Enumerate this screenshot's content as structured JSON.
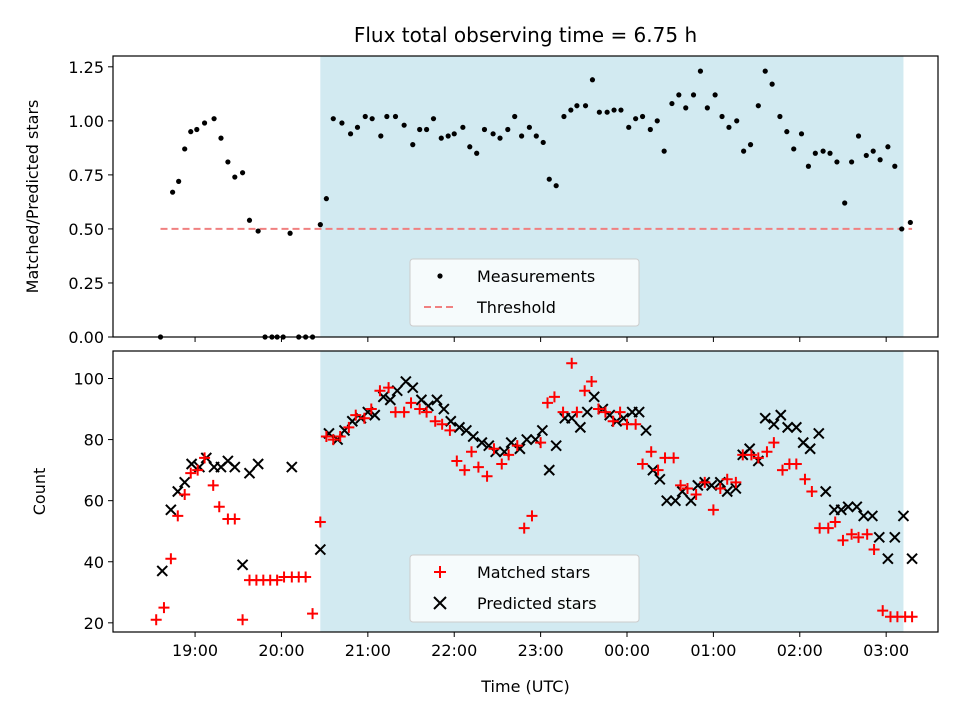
{
  "chart_data": [
    {
      "type": "scatter",
      "title": "Flux total observing time = 6.75 h",
      "ylabel": "Matched/Predicted stars",
      "xlabel": "",
      "x_unit": "hours_since_midnight",
      "xlim": [
        18.05,
        27.6
      ],
      "ylim": [
        0.0,
        1.3
      ],
      "yticks": [
        0.0,
        0.25,
        0.5,
        0.75,
        1.0,
        1.25
      ],
      "ytick_labels": [
        "0.00",
        "0.25",
        "0.50",
        "0.75",
        "1.00",
        "1.25"
      ],
      "xticks": [
        19,
        20,
        21,
        22,
        23,
        24,
        25,
        26,
        27
      ],
      "xtick_labels": [
        "19:00",
        "20:00",
        "21:00",
        "22:00",
        "23:00",
        "00:00",
        "01:00",
        "02:00",
        "03:00"
      ],
      "show_xtick_labels": false,
      "shaded_region": [
        20.45,
        27.2
      ],
      "legend_placement": "lower-center",
      "series": [
        {
          "name": "Measurements",
          "marker": "dot",
          "color": "#000000",
          "x": [
            18.6,
            18.74,
            18.81,
            18.88,
            18.95,
            19.02,
            19.11,
            19.22,
            19.3,
            19.38,
            19.46,
            19.55,
            19.63,
            19.73,
            19.81,
            19.89,
            19.95,
            20.02,
            20.1,
            20.2,
            20.28,
            20.36,
            20.45,
            20.52,
            20.6,
            20.7,
            20.8,
            20.88,
            20.97,
            21.05,
            21.15,
            21.22,
            21.32,
            21.42,
            21.52,
            21.6,
            21.68,
            21.76,
            21.85,
            21.93,
            22.0,
            22.1,
            22.18,
            22.26,
            22.35,
            22.45,
            22.53,
            22.62,
            22.7,
            22.78,
            22.87,
            22.95,
            23.03,
            23.1,
            23.18,
            23.27,
            23.35,
            23.42,
            23.52,
            23.6,
            23.68,
            23.77,
            23.85,
            23.93,
            24.02,
            24.1,
            24.18,
            24.27,
            24.35,
            24.43,
            24.52,
            24.6,
            24.68,
            24.77,
            24.85,
            24.93,
            25.02,
            25.1,
            25.18,
            25.27,
            25.35,
            25.43,
            25.52,
            25.6,
            25.68,
            25.77,
            25.85,
            25.93,
            26.02,
            26.1,
            26.18,
            26.27,
            26.35,
            26.43,
            26.52,
            26.6,
            26.68,
            26.77,
            26.85,
            26.93,
            27.02,
            27.1,
            27.18,
            27.28
          ],
          "y": [
            0.0,
            0.67,
            0.72,
            0.87,
            0.95,
            0.96,
            0.99,
            1.01,
            0.92,
            0.81,
            0.74,
            0.76,
            0.54,
            0.49,
            0.0,
            0.0,
            0.0,
            0.0,
            0.48,
            0.0,
            0.0,
            0.0,
            0.52,
            0.64,
            1.01,
            0.99,
            0.94,
            0.97,
            1.02,
            1.01,
            0.93,
            1.02,
            1.02,
            0.98,
            0.89,
            0.96,
            0.96,
            1.01,
            0.92,
            0.93,
            0.94,
            0.97,
            0.88,
            0.85,
            0.96,
            0.94,
            0.92,
            0.96,
            1.02,
            0.93,
            0.97,
            0.93,
            0.9,
            0.73,
            0.7,
            1.02,
            1.05,
            1.07,
            1.07,
            1.19,
            1.04,
            1.04,
            1.05,
            1.05,
            0.97,
            1.01,
            1.02,
            0.96,
            1.0,
            0.86,
            1.08,
            1.12,
            1.06,
            1.12,
            1.23,
            1.06,
            1.12,
            1.02,
            0.97,
            1.0,
            0.86,
            0.89,
            1.07,
            1.23,
            1.17,
            1.02,
            0.95,
            0.87,
            0.94,
            0.79,
            0.85,
            0.86,
            0.85,
            0.81,
            0.62,
            0.81,
            0.93,
            0.84,
            0.86,
            0.82,
            0.88,
            0.79,
            0.5,
            0.53
          ]
        },
        {
          "name": "Threshold",
          "type": "dashed-line",
          "color": "#f08080",
          "x": [
            18.6,
            27.3
          ],
          "y": [
            0.5,
            0.5
          ]
        }
      ]
    },
    {
      "type": "scatter",
      "title": "",
      "ylabel": "Count",
      "xlabel": "Time (UTC)",
      "x_unit": "hours_since_midnight",
      "xlim": [
        18.05,
        27.6
      ],
      "ylim": [
        17,
        109
      ],
      "yticks": [
        20,
        40,
        60,
        80,
        100
      ],
      "ytick_labels": [
        "20",
        "40",
        "60",
        "80",
        "100"
      ],
      "xticks": [
        19,
        20,
        21,
        22,
        23,
        24,
        25,
        26,
        27
      ],
      "xtick_labels": [
        "19:00",
        "20:00",
        "21:00",
        "22:00",
        "23:00",
        "00:00",
        "01:00",
        "02:00",
        "03:00"
      ],
      "shaded_region": [
        20.45,
        27.2
      ],
      "legend_placement": "lower-center",
      "series": [
        {
          "name": "Matched stars",
          "marker": "plus",
          "color": "#ff0000",
          "x": [
            18.55,
            18.64,
            18.72,
            18.8,
            18.88,
            18.95,
            19.03,
            19.11,
            19.21,
            19.28,
            19.38,
            19.46,
            19.55,
            19.63,
            19.71,
            19.79,
            19.87,
            19.95,
            20.03,
            20.12,
            20.2,
            20.28,
            20.36,
            20.45,
            20.52,
            20.6,
            20.68,
            20.78,
            20.86,
            20.96,
            21.04,
            21.14,
            21.24,
            21.32,
            21.42,
            21.5,
            21.6,
            21.68,
            21.78,
            21.86,
            21.95,
            22.03,
            22.12,
            22.2,
            22.28,
            22.38,
            22.46,
            22.55,
            22.63,
            22.73,
            22.81,
            22.9,
            23.0,
            23.08,
            23.16,
            23.26,
            23.36,
            23.42,
            23.51,
            23.59,
            23.67,
            23.75,
            23.84,
            23.92,
            24.0,
            24.1,
            24.18,
            24.28,
            24.36,
            24.44,
            24.54,
            24.62,
            24.7,
            24.8,
            24.9,
            25.0,
            25.08,
            25.16,
            25.26,
            25.34,
            25.44,
            25.52,
            25.62,
            25.7,
            25.8,
            25.88,
            25.96,
            26.06,
            26.14,
            26.23,
            26.33,
            26.41,
            26.5,
            26.6,
            26.68,
            26.78,
            26.86,
            26.96,
            27.05,
            27.13,
            27.22,
            27.3
          ],
          "y": [
            21,
            25,
            41,
            55,
            62,
            69,
            70,
            74,
            65,
            58,
            54,
            54,
            21,
            34,
            34,
            34,
            34,
            34,
            35,
            35,
            35,
            35,
            23,
            53,
            81,
            80,
            81,
            84,
            88,
            87,
            90,
            96,
            97,
            89,
            89,
            92,
            90,
            89,
            86,
            85,
            83,
            73,
            70,
            76,
            71,
            68,
            77,
            72,
            75,
            78,
            51,
            55,
            79,
            92,
            94,
            89,
            105,
            89,
            96,
            99,
            90,
            89,
            86,
            89,
            85,
            85,
            72,
            76,
            70,
            74,
            74,
            65,
            64,
            62,
            66,
            57,
            64,
            67,
            66,
            75,
            75,
            74,
            76,
            79,
            70,
            72,
            72,
            67,
            63,
            51,
            51,
            53,
            47,
            49,
            48,
            49,
            44,
            24,
            22,
            22,
            22,
            22
          ],
          "note": "values approximate"
        },
        {
          "name": "Predicted stars",
          "marker": "x",
          "color": "#000000",
          "x": [
            18.62,
            18.72,
            18.8,
            18.88,
            18.96,
            19.05,
            19.13,
            19.22,
            19.3,
            19.38,
            19.46,
            19.55,
            19.63,
            19.73,
            20.12,
            20.45,
            20.55,
            20.65,
            20.73,
            20.82,
            20.92,
            21.0,
            21.08,
            21.18,
            21.26,
            21.34,
            21.44,
            21.52,
            21.62,
            21.7,
            21.8,
            21.88,
            21.96,
            22.06,
            22.14,
            22.22,
            22.32,
            22.4,
            22.48,
            22.58,
            22.66,
            22.76,
            22.84,
            22.94,
            23.02,
            23.1,
            23.18,
            23.28,
            23.36,
            23.46,
            23.54,
            23.62,
            23.72,
            23.8,
            23.88,
            23.96,
            24.06,
            24.14,
            24.22,
            24.3,
            24.38,
            24.46,
            24.56,
            24.64,
            24.74,
            24.82,
            24.9,
            24.98,
            25.08,
            25.16,
            25.26,
            25.34,
            25.42,
            25.52,
            25.6,
            25.7,
            25.78,
            25.86,
            25.96,
            26.04,
            26.12,
            26.22,
            26.3,
            26.4,
            26.48,
            26.56,
            26.66,
            26.74,
            26.84,
            26.92,
            27.02,
            27.1,
            27.2,
            27.3
          ],
          "y": [
            37,
            57,
            63,
            66,
            72,
            71,
            74,
            71,
            71,
            73,
            71,
            39,
            69,
            72,
            71,
            44,
            82,
            80,
            83,
            86,
            87,
            89,
            88,
            94,
            93,
            96,
            99,
            97,
            93,
            91,
            93,
            90,
            86,
            84,
            83,
            81,
            79,
            78,
            76,
            76,
            79,
            77,
            80,
            80,
            83,
            70,
            78,
            87,
            87,
            84,
            89,
            94,
            90,
            88,
            86,
            87,
            89,
            89,
            83,
            70,
            67,
            60,
            60,
            63,
            60,
            65,
            66,
            65,
            66,
            63,
            64,
            75,
            77,
            73,
            87,
            85,
            88,
            84,
            84,
            79,
            77,
            82,
            63,
            57,
            57,
            58,
            58,
            55,
            55,
            48,
            41,
            48,
            55,
            41
          ],
          "note": "values approximate"
        }
      ]
    }
  ]
}
